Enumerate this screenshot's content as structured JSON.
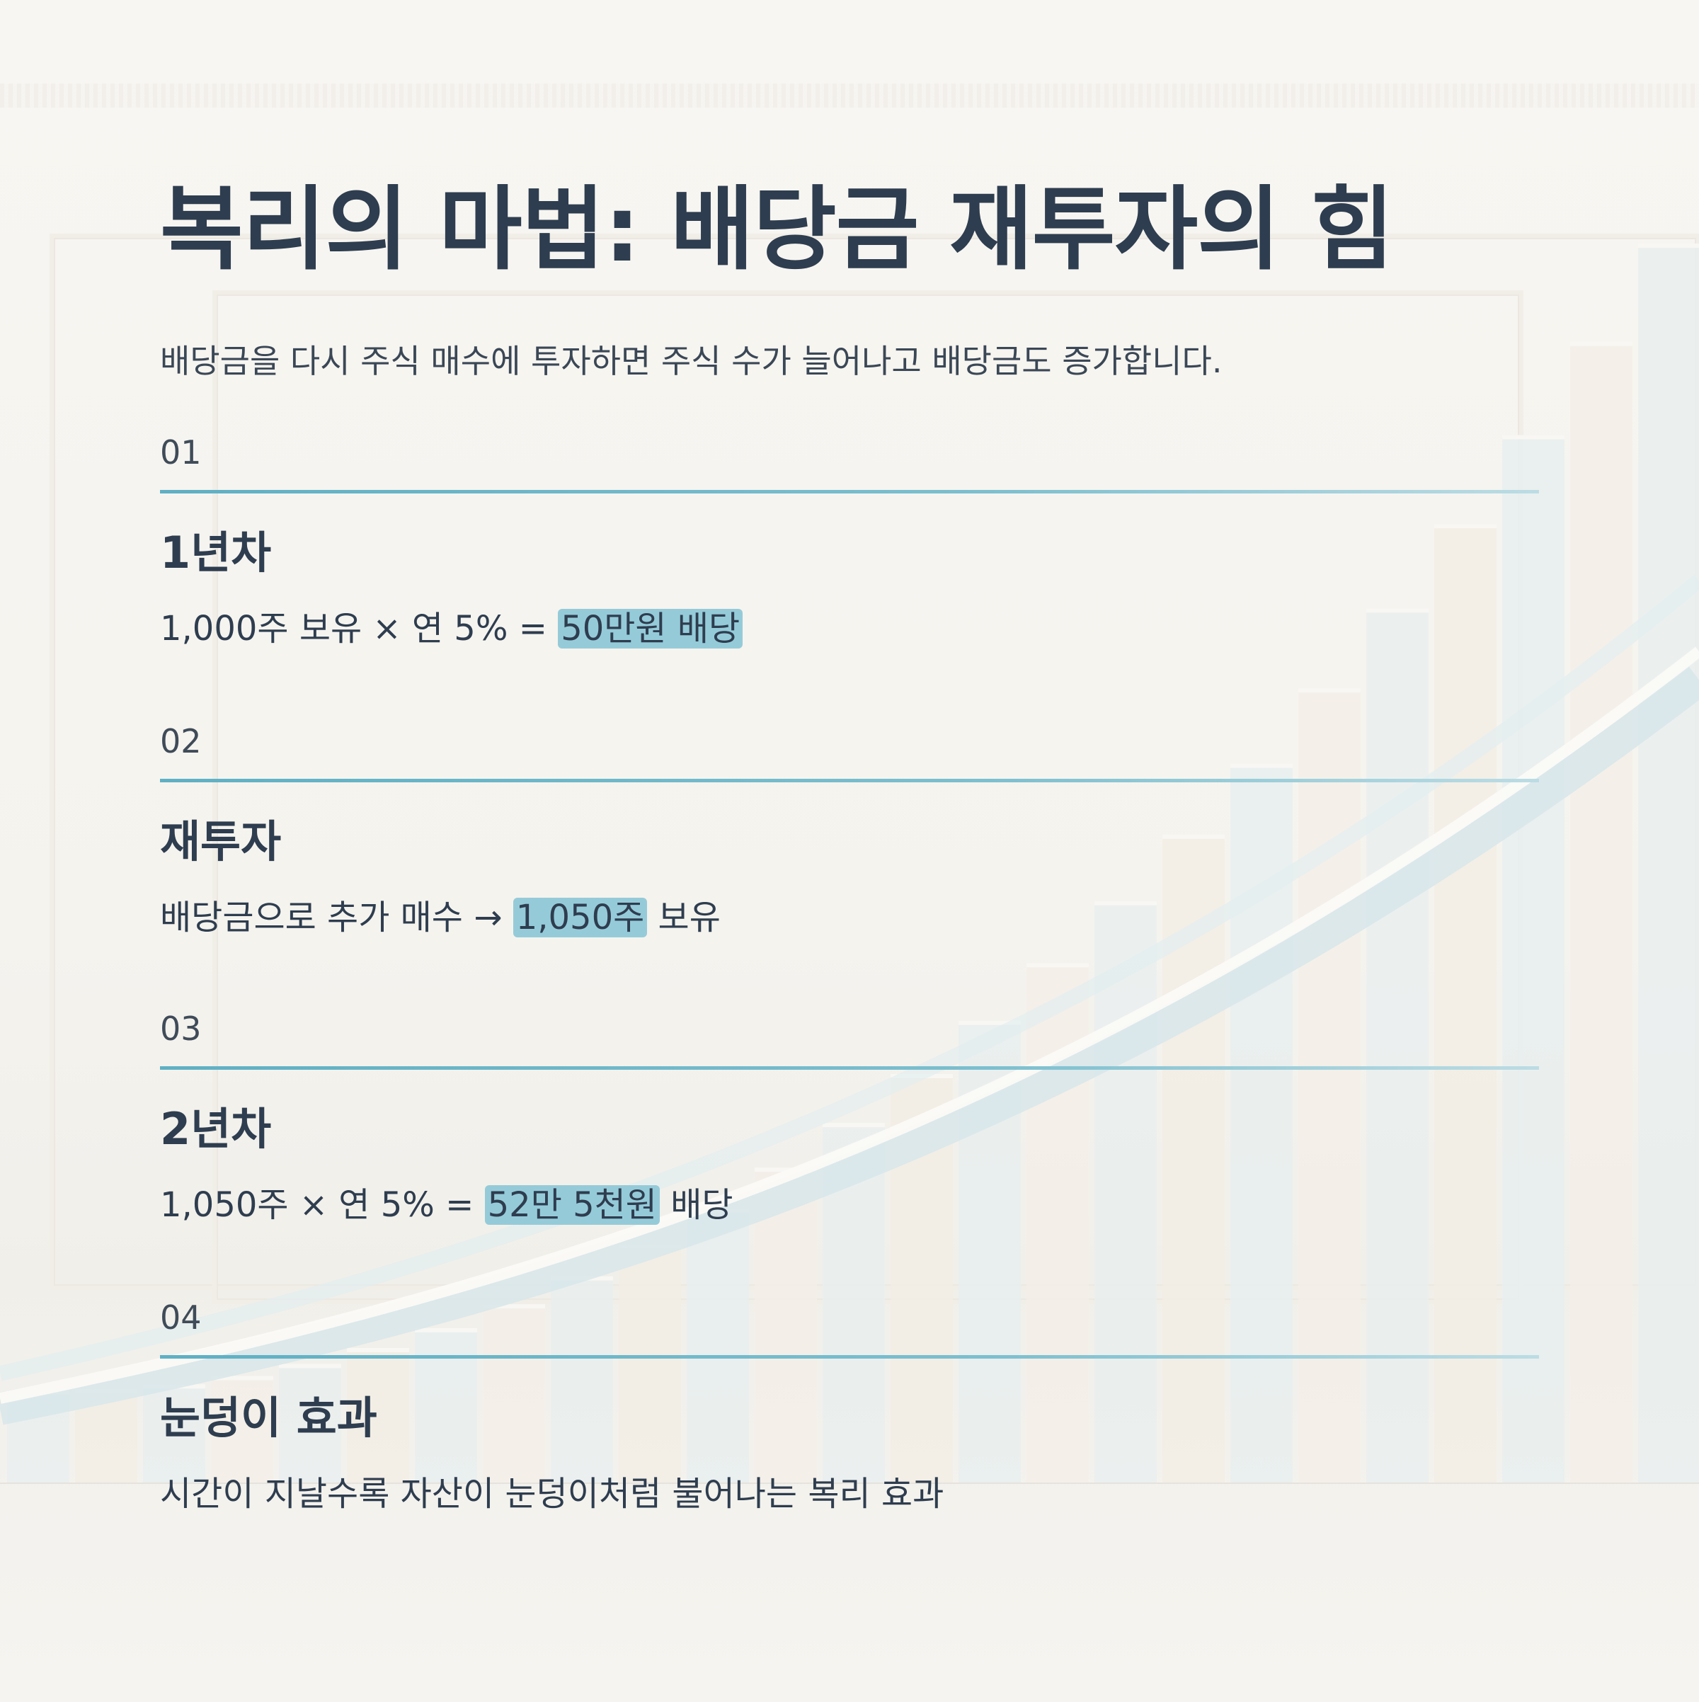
{
  "title": "복리의 마법: 배당금 재투자의 힘",
  "subtitle": "배당금을 다시 주식 매수에 투자하면 주식 수가 늘어나고 배당금도 증가합니다.",
  "colors": {
    "text": "#2e3d4f",
    "rule": "#5fb0c4",
    "highlight": "#95cbd9"
  },
  "steps": [
    {
      "num": "01",
      "heading": "1년차",
      "before": "1,000주 보유 × 연 5% = ",
      "highlight": "50만원 배당",
      "after": ""
    },
    {
      "num": "02",
      "heading": "재투자",
      "before": "배당금으로 추가 매수 → ",
      "highlight": "1,050주",
      "after": " 보유"
    },
    {
      "num": "03",
      "heading": "2년차",
      "before": "1,050주 × 연 5% = ",
      "highlight": "52만 5천원",
      "after": " 배당"
    },
    {
      "num": "04",
      "heading": "눈덩이 효과",
      "before": "시간이 지날수록 자산이 눈덩이처럼 불어나는 복리 효과",
      "highlight": "",
      "after": ""
    }
  ]
}
